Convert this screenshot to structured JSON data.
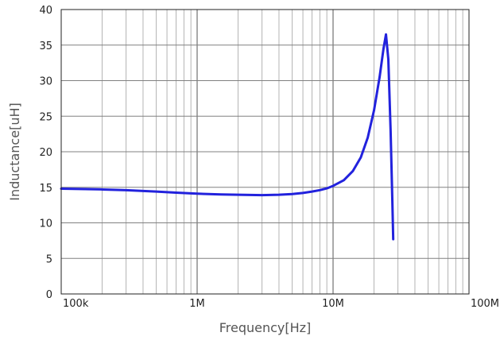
{
  "chart_data": {
    "type": "line",
    "title": "",
    "xlabel": "Frequency[Hz]",
    "ylabel": "Inductance[uH]",
    "x_scale": "log",
    "xlim": [
      100000,
      100000000
    ],
    "ylim": [
      0,
      40
    ],
    "x_ticks": [
      {
        "value": 100000,
        "label": "100k"
      },
      {
        "value": 1000000,
        "label": "1M"
      },
      {
        "value": 10000000,
        "label": "10M"
      },
      {
        "value": 100000000,
        "label": "100M"
      }
    ],
    "y_ticks": [
      {
        "value": 0,
        "label": "0"
      },
      {
        "value": 5,
        "label": "5"
      },
      {
        "value": 10,
        "label": "10"
      },
      {
        "value": 15,
        "label": "15"
      },
      {
        "value": 20,
        "label": "20"
      },
      {
        "value": 25,
        "label": "25"
      },
      {
        "value": 30,
        "label": "30"
      },
      {
        "value": 35,
        "label": "35"
      },
      {
        "value": 40,
        "label": "40"
      }
    ],
    "grid": true,
    "legend": "none",
    "series_color": "#2222dd",
    "series": [
      {
        "points": [
          [
            100000,
            14.8
          ],
          [
            150000,
            14.75
          ],
          [
            200000,
            14.7
          ],
          [
            300000,
            14.6
          ],
          [
            500000,
            14.4
          ],
          [
            700000,
            14.25
          ],
          [
            1000000,
            14.1
          ],
          [
            1500000,
            14.0
          ],
          [
            2000000,
            13.95
          ],
          [
            3000000,
            13.9
          ],
          [
            4000000,
            13.95
          ],
          [
            5000000,
            14.05
          ],
          [
            6000000,
            14.2
          ],
          [
            7000000,
            14.4
          ],
          [
            8000000,
            14.6
          ],
          [
            9000000,
            14.85
          ],
          [
            10000000,
            15.2
          ],
          [
            12000000,
            16.0
          ],
          [
            14000000,
            17.3
          ],
          [
            16000000,
            19.2
          ],
          [
            18000000,
            22.0
          ],
          [
            20000000,
            25.8
          ],
          [
            22000000,
            30.5
          ],
          [
            23500000,
            34.5
          ],
          [
            24500000,
            36.5
          ],
          [
            25500000,
            33.0
          ],
          [
            26500000,
            23.0
          ],
          [
            27300000,
            13.0
          ],
          [
            27700000,
            7.7
          ]
        ]
      }
    ]
  }
}
